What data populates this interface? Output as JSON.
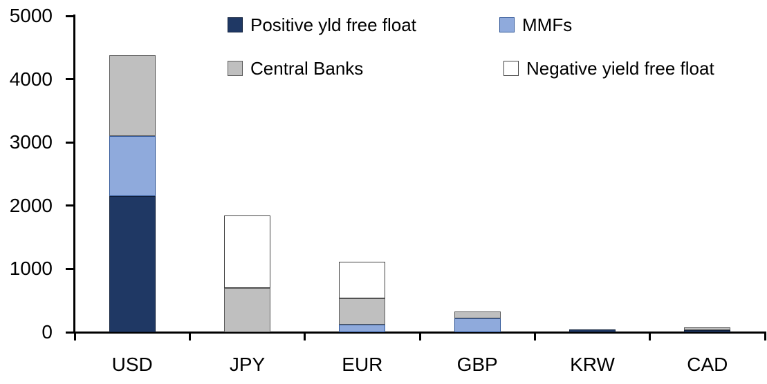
{
  "chart_data": {
    "type": "bar",
    "stacked": true,
    "title": "",
    "xlabel": "",
    "ylabel": "",
    "categories": [
      "USD",
      "JPY",
      "EUR",
      "GBP",
      "KRW",
      "CAD"
    ],
    "series": [
      {
        "name": "Positive yld free float",
        "color": "#1F3864",
        "border": "#10203C",
        "values": [
          2150,
          0,
          0,
          0,
          45,
          30
        ]
      },
      {
        "name": "MMFs",
        "color": "#8FAADC",
        "border": "#2E5597",
        "values": [
          950,
          0,
          120,
          220,
          0,
          0
        ]
      },
      {
        "name": "Central Banks",
        "color": "#BFBFBF",
        "border": "#595959",
        "values": [
          1280,
          700,
          420,
          110,
          0,
          45
        ]
      },
      {
        "name": "Negative yield free float",
        "color": "#FFFFFF",
        "border": "#404040",
        "values": [
          0,
          1150,
          570,
          0,
          0,
          0
        ]
      }
    ],
    "totals": [
      4380,
      1850,
      1110,
      330,
      45,
      75
    ],
    "ylim": [
      0,
      5000
    ],
    "ytick_interval": 1000,
    "yticks": [
      "0",
      "1000",
      "2000",
      "3000",
      "4000",
      "5000"
    ],
    "grid": false,
    "legend_position": "top",
    "axis_color": "#000000",
    "text_color": "#000000",
    "background_color": "#FFFFFF"
  }
}
